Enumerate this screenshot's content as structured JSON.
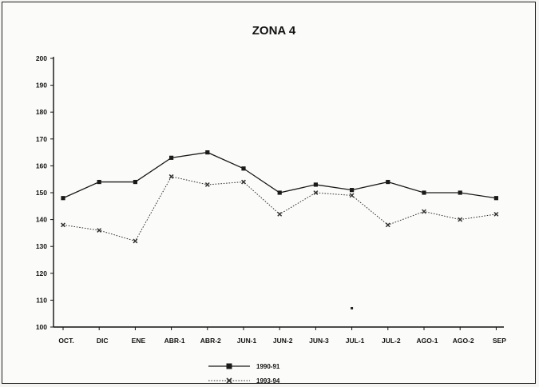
{
  "chart_data": {
    "type": "line",
    "title": "ZONA 4",
    "xlabel": "",
    "ylabel": "",
    "categories": [
      "OCT.",
      "DIC",
      "ENE",
      "ABR-1",
      "ABR-2",
      "JUN-1",
      "JUN-2",
      "JUN-3",
      "JUL-1",
      "JUL-2",
      "AGO-1",
      "AGO-2",
      "SEP"
    ],
    "ylim": [
      100,
      200
    ],
    "yticks": [
      100,
      110,
      120,
      130,
      140,
      150,
      160,
      170,
      180,
      190,
      200
    ],
    "grid": false,
    "legend_position": "bottom-center",
    "series": [
      {
        "name": "1990-91",
        "marker": "square",
        "color": "#1a1a1a",
        "values": [
          148,
          154,
          154,
          163,
          165,
          159,
          150,
          153,
          151,
          154,
          150,
          150,
          148
        ]
      },
      {
        "name": "1993-94",
        "marker": "x",
        "color": "#333333",
        "values": [
          138,
          136,
          132,
          156,
          153,
          154,
          142,
          150,
          149,
          138,
          143,
          140,
          142
        ]
      }
    ],
    "extra_points": [
      {
        "category": "JUL-1",
        "value": 107
      }
    ]
  }
}
